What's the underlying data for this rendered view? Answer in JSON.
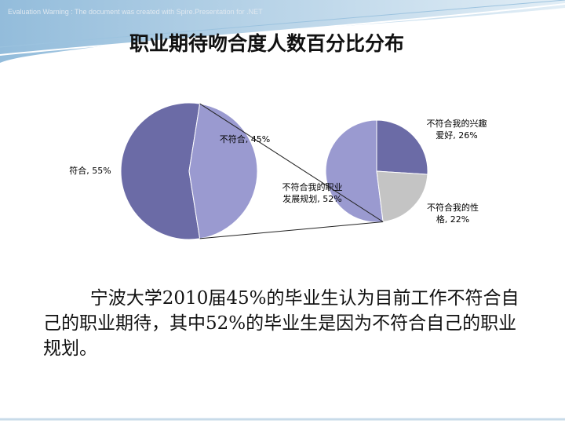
{
  "watermark": "Evaluation Warning : The document was created with  Spire.Presentation for .NET",
  "title": "职业期待吻合度人数百分比分布",
  "chart_data": {
    "type": "pie_of_pie",
    "values": [
      55,
      45
    ],
    "value_labels": [
      "符合, 55%",
      "不符合, 45%"
    ],
    "colors": [
      "#6b6ba6",
      "#9a9ad0"
    ],
    "detail_of": 1,
    "detail_values": [
      52,
      26,
      22
    ],
    "detail_value_labels": [
      "不符合我的职业\n发展规划, 52%",
      "不符合我的兴趣\n爱好, 26%",
      "不符合我的性\n格, 22%"
    ],
    "detail_colors": [
      "#9a9ad0",
      "#6b6ba6",
      "#c4c4c4"
    ]
  },
  "body": "宁波大学2010届45%的毕业生认为目前工作不符合自己的职业期待，其中52%的毕业生是因为不符合自己的职业规划。"
}
